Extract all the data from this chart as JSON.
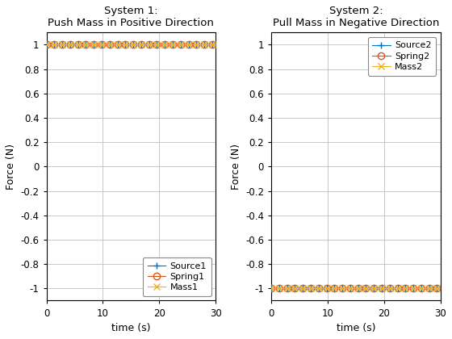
{
  "ax1_title": "System 1:\nPush Mass in Positive Direction",
  "ax2_title": "System 2:\nPull Mass in Negative Direction",
  "xlabel": "time (s)",
  "ylabel": "Force (N)",
  "xlim": [
    0,
    30
  ],
  "ylim": [
    -1.1,
    1.1
  ],
  "yticks": [
    -1.0,
    -0.8,
    -0.6,
    -0.4,
    -0.2,
    0.0,
    0.2,
    0.4,
    0.6,
    0.8,
    1.0
  ],
  "yticklabels": [
    "-1",
    "-0.8",
    "-0.6",
    "-0.4",
    "-0.2",
    "0",
    "0.2",
    "0.4",
    "0.6",
    "0.8",
    "1"
  ],
  "xticks": [
    0,
    10,
    20,
    30
  ],
  "source1_value": 1.0,
  "spring1_value": 1.0,
  "mass1_value": 1.0,
  "source2_value": -1.0,
  "spring2_value": -1.0,
  "mass2_value": -1.0,
  "source_color": "#0072BD",
  "spring_color": "#D95319",
  "mass_color": "#EDB120",
  "legend1_labels": [
    "Source1",
    "Spring1",
    "Mass1"
  ],
  "legend2_labels": [
    "Source2",
    "Spring2",
    "Mass2"
  ],
  "legend1_loc": "lower right",
  "legend2_loc": "upper right",
  "bg_color": "#FFFFFF",
  "grid_color": "#C0C0C0",
  "marker_size": 6,
  "line_width": 0.8,
  "n_points": 301,
  "marker_every": 14,
  "title_fontsize": 9.5,
  "label_fontsize": 9,
  "tick_fontsize": 8.5,
  "legend_fontsize": 8
}
